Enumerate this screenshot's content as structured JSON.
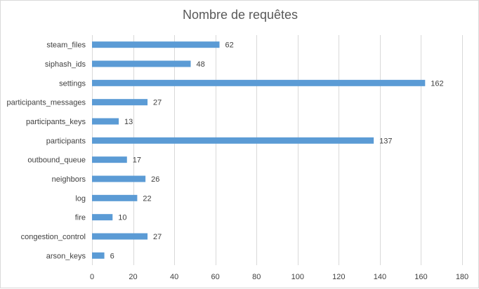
{
  "chart_data": {
    "type": "bar",
    "orientation": "horizontal",
    "title": "Nombre de requêtes",
    "xlabel": "",
    "ylabel": "",
    "categories": [
      "steam_files",
      "siphash_ids",
      "settings",
      "participants_messages",
      "participants_keys",
      "participants",
      "outbound_queue",
      "neighbors",
      "log",
      "fire",
      "congestion_control",
      "arson_keys"
    ],
    "values": [
      62,
      48,
      162,
      27,
      13,
      137,
      17,
      26,
      22,
      10,
      27,
      6
    ],
    "xlim": [
      0,
      180
    ],
    "xticks": [
      0,
      20,
      40,
      60,
      80,
      100,
      120,
      140,
      160,
      180
    ],
    "grid": true,
    "legend": "none",
    "bar_color": "#5b9bd5",
    "grid_color": "#d9d9d9",
    "text_color": "#404040"
  }
}
